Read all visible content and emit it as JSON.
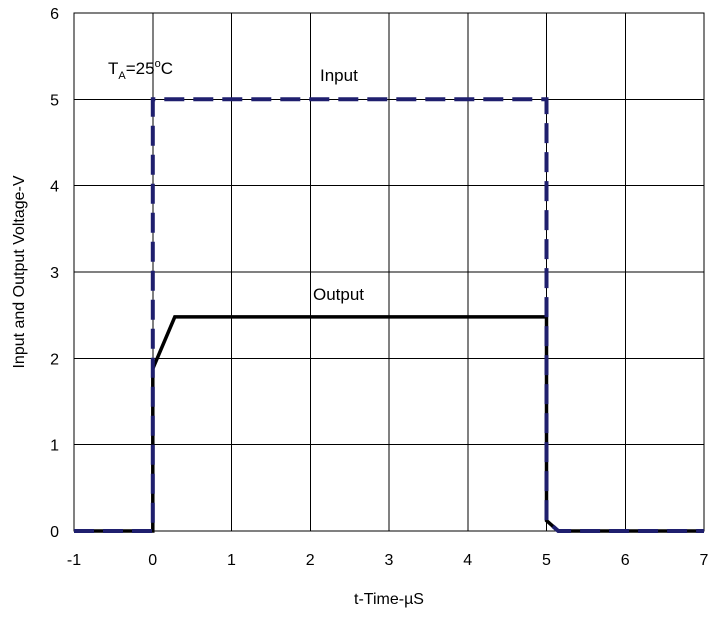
{
  "chart_data": {
    "type": "line",
    "title": "",
    "xlabel": "t-Time-µS",
    "ylabel": "Input and Output Voltage-V",
    "xlim": [
      -1,
      7
    ],
    "ylim": [
      0,
      6
    ],
    "xticks": [
      -1,
      0,
      1,
      2,
      3,
      4,
      5,
      6,
      7
    ],
    "yticks": [
      0,
      1,
      2,
      3,
      4,
      5,
      6
    ],
    "grid": true,
    "annotation": {
      "base": "T",
      "sub": "A",
      "rest_value": "=25",
      "sup": "o",
      "unit": "C"
    },
    "series": [
      {
        "name": "Input",
        "color": "#1f1f6e",
        "dash": true,
        "x": [
          -1,
          0,
          0,
          5,
          5,
          5.15,
          7
        ],
        "y": [
          0,
          0,
          5,
          5,
          0.12,
          0,
          0
        ]
      },
      {
        "name": "Output",
        "color": "#000000",
        "dash": false,
        "x": [
          -1,
          0,
          0,
          0.28,
          5,
          5,
          5.15,
          7
        ],
        "y": [
          0,
          0,
          1.88,
          2.48,
          2.48,
          0.12,
          0,
          0
        ]
      }
    ]
  }
}
